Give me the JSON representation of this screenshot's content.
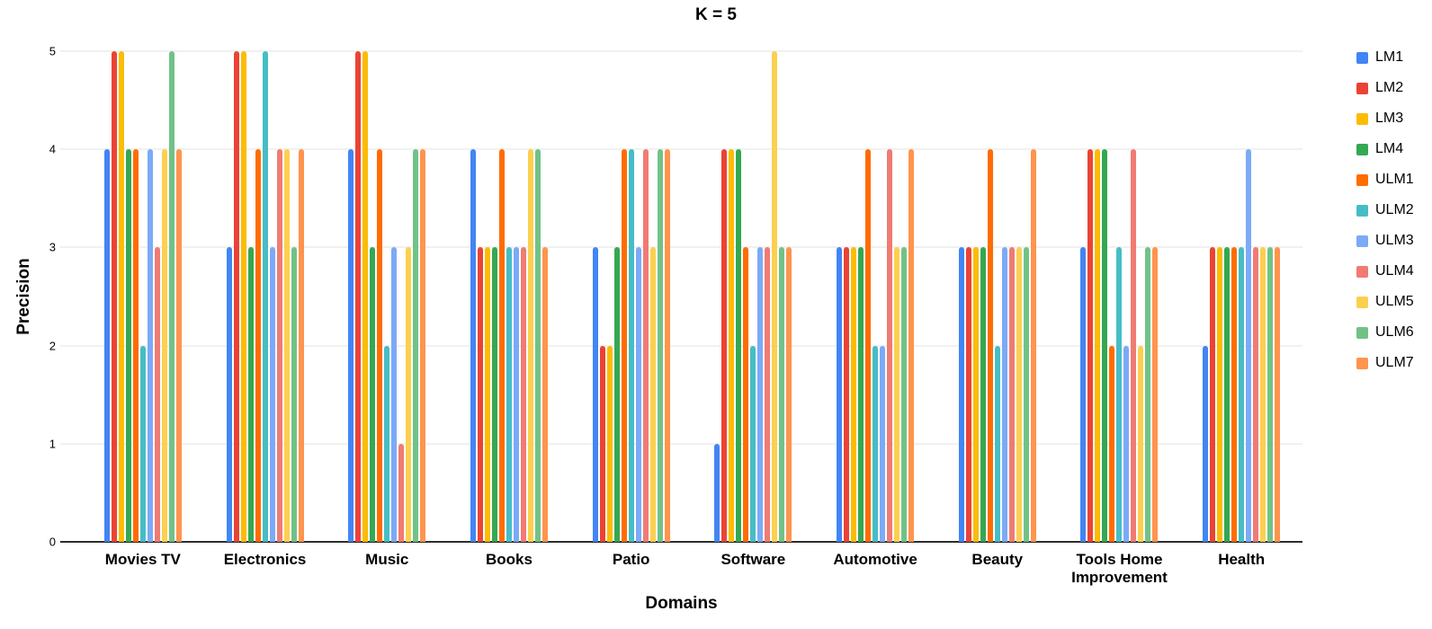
{
  "chart_data": {
    "type": "bar",
    "title": "K = 5",
    "xlabel": "Domains",
    "ylabel": "Precision",
    "ylim": [
      0,
      5
    ],
    "yticks": [
      0,
      1,
      2,
      3,
      4,
      5
    ],
    "grid": true,
    "legend_position": "right",
    "background_color": "#ffffff",
    "gridline_color": "#e3e3e3",
    "axis_line_color": "#2d2d2d",
    "categories": [
      "Movies TV",
      "Electronics",
      "Music",
      "Books",
      "Patio",
      "Software",
      "Automotive",
      "Beauty",
      "Tools Home Improvement",
      "Health"
    ],
    "series": [
      {
        "name": "LM1",
        "color": "#4285F4",
        "values": [
          4,
          3,
          4,
          4,
          3,
          1,
          3,
          3,
          3,
          2
        ]
      },
      {
        "name": "LM2",
        "color": "#EA4335",
        "values": [
          5,
          5,
          5,
          3,
          2,
          4,
          3,
          3,
          4,
          3
        ]
      },
      {
        "name": "LM3",
        "color": "#FBBC04",
        "values": [
          5,
          5,
          5,
          3,
          2,
          4,
          3,
          3,
          4,
          3
        ]
      },
      {
        "name": "LM4",
        "color": "#34A853",
        "values": [
          4,
          3,
          3,
          3,
          3,
          4,
          3,
          3,
          4,
          3
        ]
      },
      {
        "name": "ULM1",
        "color": "#FF6D01",
        "values": [
          4,
          4,
          4,
          4,
          4,
          3,
          4,
          4,
          2,
          3
        ]
      },
      {
        "name": "ULM2",
        "color": "#46BDC6",
        "values": [
          2,
          5,
          2,
          3,
          4,
          2,
          2,
          2,
          3,
          3
        ]
      },
      {
        "name": "ULM3",
        "color": "#7BAAF7",
        "values": [
          4,
          3,
          3,
          3,
          3,
          3,
          2,
          3,
          2,
          4
        ]
      },
      {
        "name": "ULM4",
        "color": "#F07B72",
        "values": [
          3,
          4,
          1,
          3,
          4,
          3,
          4,
          3,
          4,
          3
        ]
      },
      {
        "name": "ULM5",
        "color": "#FCD04F",
        "values": [
          4,
          4,
          3,
          4,
          3,
          5,
          3,
          3,
          2,
          3
        ]
      },
      {
        "name": "ULM6",
        "color": "#71C287",
        "values": [
          5,
          3,
          4,
          4,
          4,
          3,
          3,
          3,
          3,
          3
        ]
      },
      {
        "name": "ULM7",
        "color": "#FF944E",
        "values": [
          4,
          4,
          4,
          3,
          4,
          3,
          4,
          4,
          3,
          3
        ]
      }
    ]
  }
}
